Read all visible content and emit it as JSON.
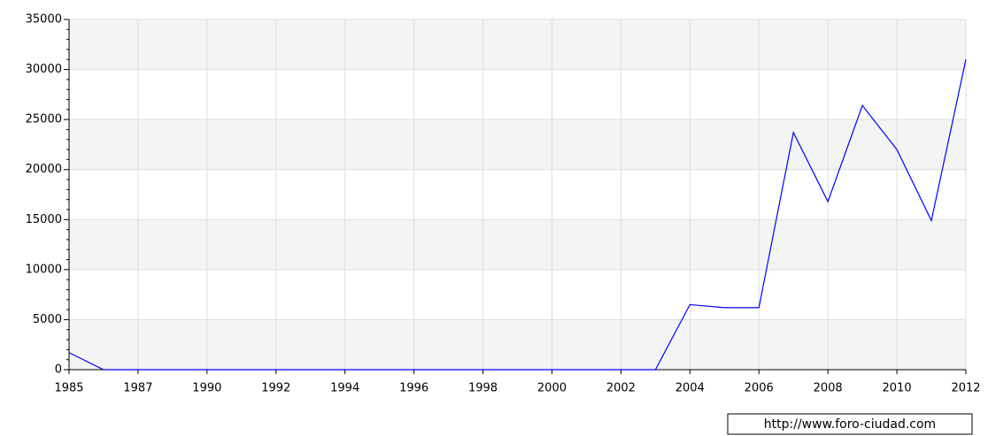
{
  "chart_data": {
    "type": "line",
    "categories": [
      "1985",
      null,
      "1987",
      null,
      "1990",
      null,
      "1992",
      null,
      "1994",
      null,
      "1996",
      null,
      "1998",
      null,
      "2000",
      null,
      "2002",
      null,
      "2004",
      null,
      "2006",
      null,
      "2008",
      null,
      "2010",
      null,
      "2012"
    ],
    "series": [
      {
        "name": null,
        "color": "#0000ff",
        "values": [
          1700,
          0,
          0,
          0,
          0,
          0,
          0,
          0,
          0,
          0,
          0,
          0,
          0,
          0,
          0,
          0,
          0,
          0,
          6500,
          6200,
          6200,
          23700,
          16800,
          26400,
          22000,
          14900,
          31000
        ]
      }
    ],
    "ylim": [
      0,
      35000
    ],
    "yticks": [
      0,
      5000,
      10000,
      15000,
      20000,
      25000,
      30000,
      35000
    ],
    "grid": true,
    "band_color": "#f4f4f4"
  },
  "footer": {
    "source": "http://www.foro-ciudad.com"
  }
}
